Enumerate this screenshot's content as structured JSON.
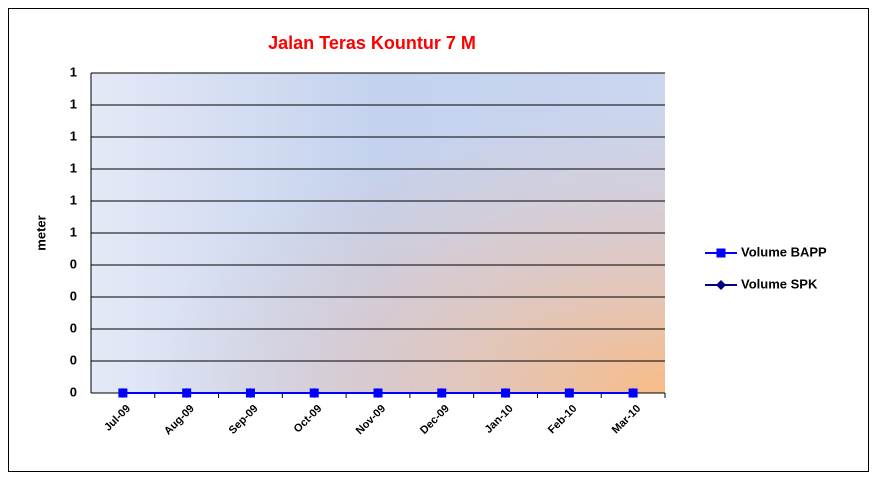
{
  "chart_data": {
    "type": "line",
    "title": "Jalan Teras Kountur 7 M",
    "y_label": "meter",
    "categories": [
      "Jul-09",
      "Aug-09",
      "Sep-09",
      "Oct-09",
      "Nov-09",
      "Dec-09",
      "Jan-10",
      "Feb-10",
      "Mar-10"
    ],
    "series": [
      {
        "name": "Volume BAPP",
        "color": "#0000ff",
        "marker": "square",
        "values": [
          0,
          0,
          0,
          0,
          0,
          0,
          0,
          0,
          0
        ]
      },
      {
        "name": "Volume SPK",
        "color": "#000080",
        "marker": "diamond",
        "values": [
          0,
          0,
          0,
          0,
          0,
          0,
          0,
          0,
          0
        ]
      }
    ],
    "ylim": [
      0,
      1
    ],
    "yticks": [
      0,
      {
        "value": 0.1,
        "label": "0"
      },
      {
        "value": 0.2,
        "label": "0"
      },
      {
        "value": 0.3,
        "label": "0"
      },
      {
        "value": 0.4,
        "label": "0"
      },
      {
        "value": 0.5,
        "label": "1"
      },
      {
        "value": 0.6,
        "label": "1"
      },
      {
        "value": 0.7,
        "label": "1"
      },
      {
        "value": 0.8,
        "label": "1"
      },
      {
        "value": 0.9,
        "label": "1"
      },
      1
    ],
    "grid": true,
    "legend": "right"
  }
}
